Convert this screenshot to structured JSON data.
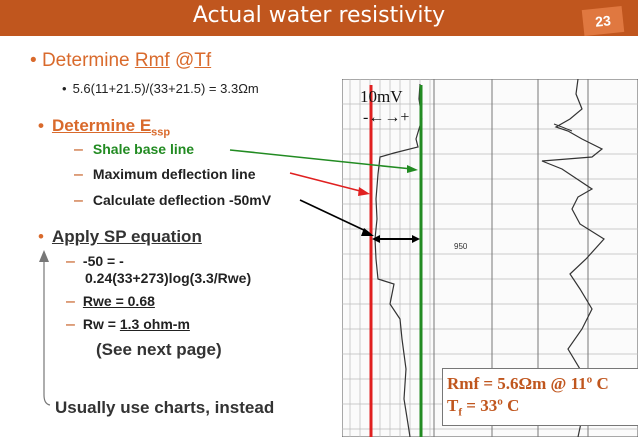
{
  "title": "Actual water resistivity",
  "page_number": "23",
  "bullets": {
    "rmf_heading_prefix": "Determine ",
    "rmf_heading_term1": "Rmf",
    "rmf_heading_at": " @",
    "rmf_heading_term2": "Tf",
    "rmf_calc": "5.6(11+21.5)/(33+21.5) = 3.3Ωm",
    "essp_heading": "Determine E",
    "essp_sub": "ssp",
    "essp_items": [
      "Shale base line",
      "Maximum deflection line",
      "Calculate deflection -50mV"
    ],
    "sp_heading": "Apply SP equation",
    "sp_items": [
      "-50 = -",
      "0.24(33+273)log(3.3/Rwe)",
      "Rwe = 0.68",
      "Rw = ",
      "1.3 ohm-m"
    ],
    "see_next": "(See next page)",
    "usually": "Usually use charts, instead"
  },
  "log": {
    "scale_label": "10mV",
    "scale_arrows": "-←→+",
    "depth_label": "950"
  },
  "info": {
    "rmf_line": "Rmf = 5.6Ωm @ 11º C",
    "tf_prefix": "T",
    "tf_sub": "f",
    "tf_suffix": " = 33º C"
  },
  "colors": {
    "title_bar": "#c0561e",
    "accent_orange": "#d96a2c",
    "green": "#228b22",
    "red": "#e02020"
  }
}
